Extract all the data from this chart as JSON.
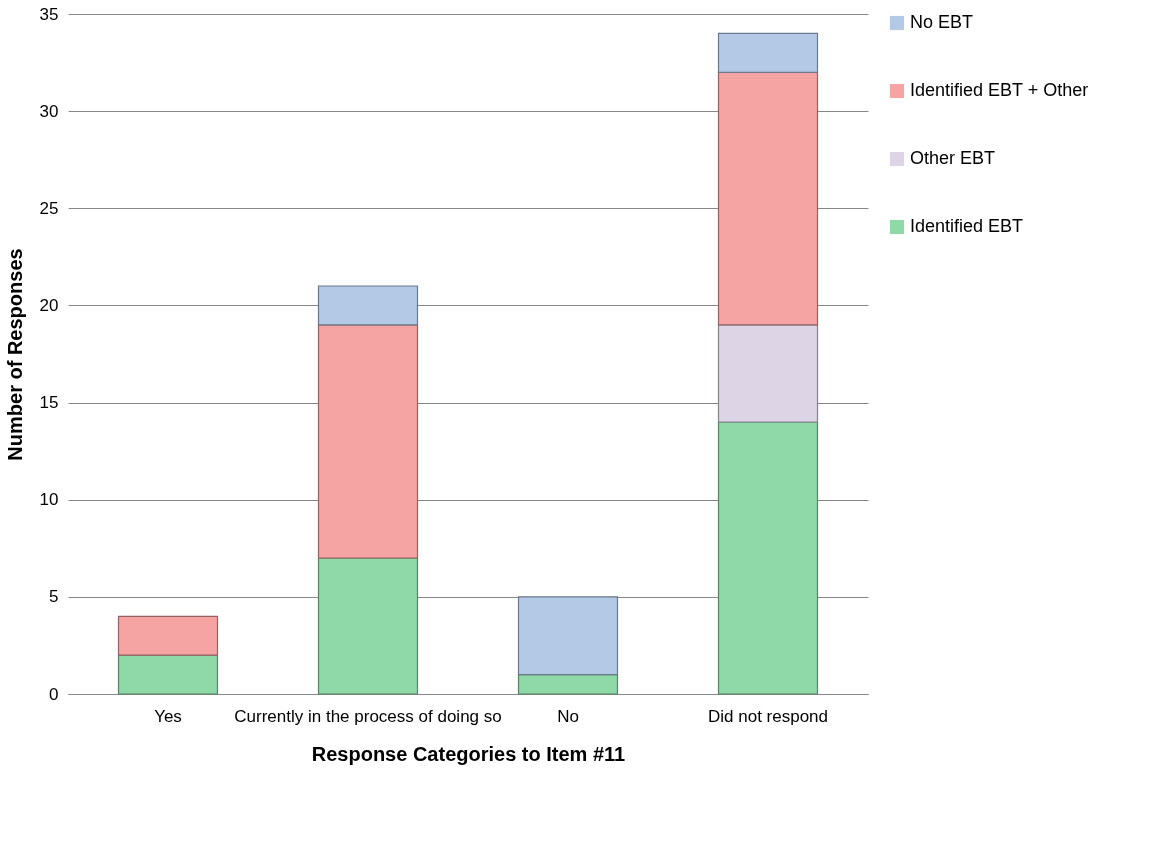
{
  "chart_data": {
    "type": "bar",
    "stacked": true,
    "xlabel": "Response Categories to Item #11",
    "ylabel": "Number of Responses",
    "categories": [
      "Yes",
      "Currently in the process of doing so",
      "No",
      "Did not respond"
    ],
    "series": [
      {
        "name": "Identified EBT",
        "color": "#8fd9a8",
        "values": [
          2,
          7,
          1,
          14
        ]
      },
      {
        "name": "Other EBT",
        "color": "#ddd5e6",
        "values": [
          null,
          null,
          null,
          5
        ]
      },
      {
        "name": "Identified EBT + Other",
        "color": "#f5a3a3",
        "values": [
          2,
          12,
          null,
          13
        ]
      },
      {
        "name": "No EBT",
        "color": "#b3c9e6",
        "values": [
          null,
          2,
          4,
          2
        ]
      }
    ],
    "ylim": [
      0,
      35
    ],
    "yticks": [
      0,
      5,
      10,
      15,
      20,
      25,
      30,
      35
    ],
    "grid": "y",
    "legend": "right"
  }
}
